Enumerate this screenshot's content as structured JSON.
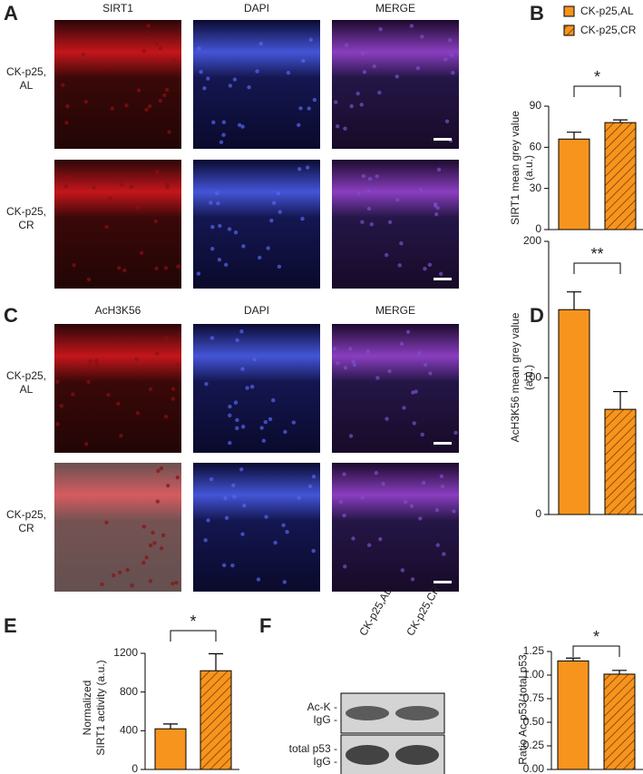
{
  "panel_letters": [
    "A",
    "B",
    "C",
    "D",
    "E",
    "F"
  ],
  "micrographs": [
    {
      "channels": [
        "SIRT1",
        "DAPI",
        "MERGE"
      ],
      "rows": [
        "CK-p25,\nAL",
        "CK-p25,\nCR"
      ]
    },
    {
      "channels": [
        "AcH3K56",
        "DAPI",
        "MERGE"
      ],
      "rows": [
        "CK-p25,\nAL",
        "CK-p25,\nCR"
      ]
    }
  ],
  "legend": [
    {
      "name": "CK-p25,AL",
      "color": "#f7941d",
      "hatch": false
    },
    {
      "name": "CK-p25,CR",
      "color": "#f7941d",
      "hatch": true
    }
  ],
  "blot": {
    "lanes": [
      "CK-p25,AL",
      "CK-p25,CR"
    ],
    "rows": [
      "Ac-K -\nIgG -",
      "total p53 -\nIgG -"
    ]
  },
  "chart_data": [
    {
      "type": "bar",
      "ylabel": "SIRT1 mean grey value\n(a.u.)",
      "values": [
        66,
        78
      ],
      "errors": [
        5,
        2
      ],
      "ylim": [
        0,
        90
      ],
      "yticks": [
        0,
        30,
        60,
        90
      ],
      "annotation": "*"
    },
    {
      "type": "bar",
      "ylabel": "AcH3K56 mean grey value\n(a.u.)",
      "values": [
        150,
        77
      ],
      "errors": [
        13,
        13
      ],
      "ylim": [
        0,
        200
      ],
      "yticks": [
        0,
        100,
        200
      ],
      "annotation": "**"
    },
    {
      "type": "bar",
      "ylabel": "Normalized\nSIRT1 activity (a.u.)",
      "values": [
        420,
        1020
      ],
      "errors": [
        50,
        175
      ],
      "ylim": [
        0,
        1200
      ],
      "yticks": [
        0,
        400,
        800,
        1200
      ],
      "annotation": "*"
    },
    {
      "type": "bar",
      "ylabel": "Ratio Ac-p53/ total p53",
      "values": [
        1.15,
        1.01
      ],
      "errors": [
        0.03,
        0.04
      ],
      "ylim": [
        0,
        1.25
      ],
      "yticks": [
        {
          "value": 0,
          "label": "0.00"
        },
        {
          "value": 0.25,
          "label": "0.25"
        },
        {
          "value": 0.5,
          "label": "0.50"
        },
        {
          "value": 0.75,
          "label": "0.75"
        },
        {
          "value": 1,
          "label": "1.00"
        },
        {
          "value": 1.25,
          "label": "1.25"
        }
      ],
      "annotation": "*"
    }
  ]
}
